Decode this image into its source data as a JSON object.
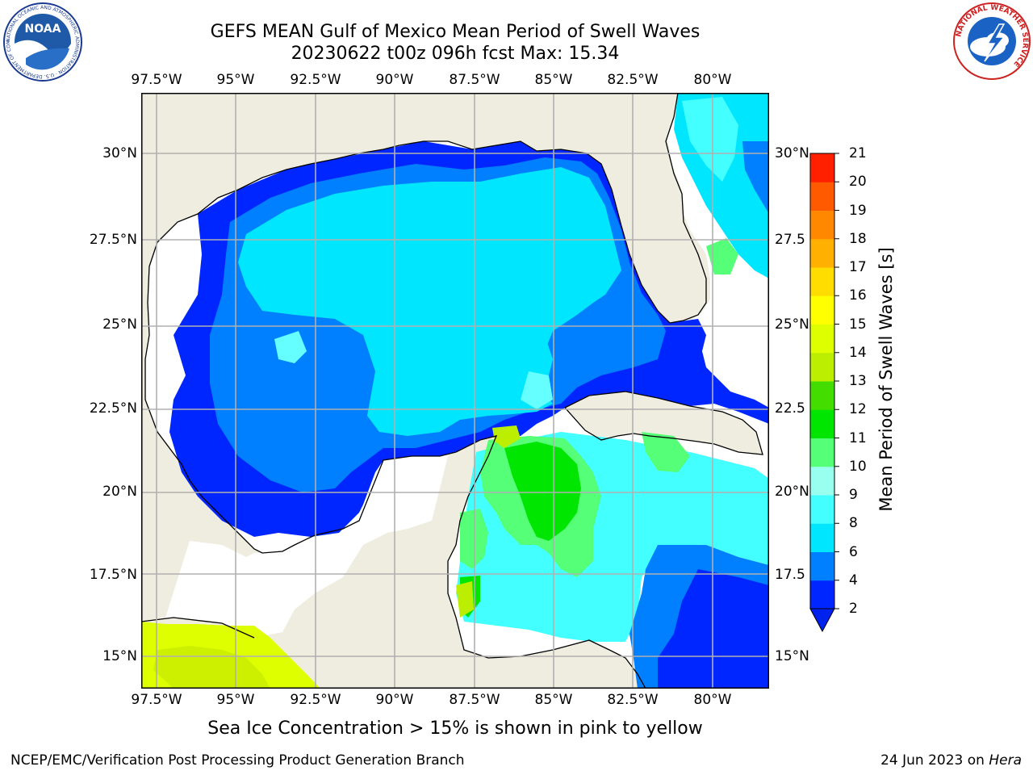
{
  "header": {
    "title_line1": "GEFS MEAN Gulf of Mexico Mean Period of Swell Waves",
    "title_line2": "20230622 t00z 096h fcst   Max: 15.34"
  },
  "logos": {
    "left": "NOAA",
    "left_ring_text": "NATIONAL OCEANIC AND ATMOSPHERIC ADMINISTRATION · U.S. DEPARTMENT OF COMMERCE",
    "right_ring_text": "NATIONAL WEATHER SERVICE"
  },
  "map": {
    "lon_ticks": [
      "97.5°W",
      "95°W",
      "92.5°W",
      "90°W",
      "87.5°W",
      "85°W",
      "82.5°W",
      "80°W"
    ],
    "lat_ticks_left": [
      "30°N",
      "27.5°N",
      "25°N",
      "22.5°N",
      "20°N",
      "17.5°N",
      "15°N"
    ],
    "lat_ticks_right": [
      "30°N",
      "27.5",
      "25°N",
      "22.5",
      "20°N",
      "17.5",
      "15°N"
    ],
    "lon_range": [
      -98,
      -78.2
    ],
    "lat_range": [
      14,
      31.8
    ],
    "colors": {
      "land": "#eeede0",
      "gridline": "#b0b0b0",
      "coastline": "#000000"
    }
  },
  "colorbar": {
    "label": "Mean Period of Swell Waves [s]",
    "ticks": [
      "2",
      "4",
      "6",
      "8",
      "9",
      "10",
      "11",
      "12",
      "13",
      "14",
      "15",
      "16",
      "17",
      "18",
      "19",
      "20",
      "21"
    ],
    "colors": [
      "#0026ff",
      "#0080ff",
      "#00e6ff",
      "#44ffff",
      "#99ffee",
      "#55ff77",
      "#00e600",
      "#44dd00",
      "#bbee00",
      "#ddff00",
      "#ffff00",
      "#ffdd00",
      "#ffb000",
      "#ff8800",
      "#ff5a00",
      "#ff2000"
    ],
    "extend_color": "#0022ee"
  },
  "subtitle": "Sea Ice Concentration > 15% is shown in pink to yellow",
  "footer": {
    "left": "NCEP/EMC/Verification Post Processing Product Generation Branch",
    "date": "24 Jun 2023 on ",
    "machine": "Hera"
  }
}
